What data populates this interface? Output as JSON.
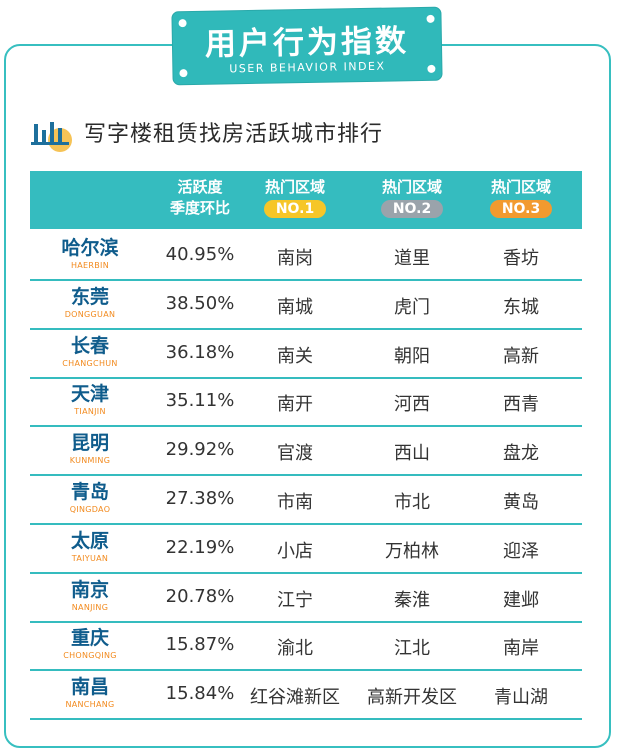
{
  "banner": {
    "title": "用户行为指数",
    "subtitle": "USER BEHAVIOR INDEX"
  },
  "section": {
    "title": "写字楼租赁找房活跃城市排行"
  },
  "table": {
    "header": {
      "rate_line1": "活跃度",
      "rate_line2": "季度环比",
      "hot1_label": "热门区域",
      "hot1_badge": "NO.1",
      "hot2_label": "热门区域",
      "hot2_badge": "NO.2",
      "hot3_label": "热门区域",
      "hot3_badge": "NO.3"
    },
    "rows": [
      {
        "city": "哈尔滨",
        "city_en": "HAERBIN",
        "rate": "40.95%",
        "no1": "南岗",
        "no2": "道里",
        "no3": "香坊"
      },
      {
        "city": "东莞",
        "city_en": "DONGGUAN",
        "rate": "38.50%",
        "no1": "南城",
        "no2": "虎门",
        "no3": "东城"
      },
      {
        "city": "长春",
        "city_en": "CHANGCHUN",
        "rate": "36.18%",
        "no1": "南关",
        "no2": "朝阳",
        "no3": "高新"
      },
      {
        "city": "天津",
        "city_en": "TIANJIN",
        "rate": "35.11%",
        "no1": "南开",
        "no2": "河西",
        "no3": "西青"
      },
      {
        "city": "昆明",
        "city_en": "KUNMING",
        "rate": "29.92%",
        "no1": "官渡",
        "no2": "西山",
        "no3": "盘龙"
      },
      {
        "city": "青岛",
        "city_en": "QINGDAO",
        "rate": "27.38%",
        "no1": "市南",
        "no2": "市北",
        "no3": "黄岛"
      },
      {
        "city": "太原",
        "city_en": "TAIYUAN",
        "rate": "22.19%",
        "no1": "小店",
        "no2": "万柏林",
        "no3": "迎泽"
      },
      {
        "city": "南京",
        "city_en": "NANJING",
        "rate": "20.78%",
        "no1": "江宁",
        "no2": "秦淮",
        "no3": "建邺"
      },
      {
        "city": "重庆",
        "city_en": "CHONGQING",
        "rate": "15.87%",
        "no1": "渝北",
        "no2": "江北",
        "no3": "南岸"
      },
      {
        "city": "南昌",
        "city_en": "NANCHANG",
        "rate": "15.84%",
        "no1": "红谷滩新区",
        "no2": "高新开发区",
        "no3": "青山湖"
      }
    ]
  },
  "colors": {
    "accent": "#35bcbf",
    "city_name": "#0f5c8c",
    "city_en": "#f28a1e",
    "badge_gold": "#f6c628",
    "badge_silver": "#9aa3ab",
    "badge_orange": "#f29a2f"
  },
  "icons": {
    "section": "bar-chart-icon"
  }
}
